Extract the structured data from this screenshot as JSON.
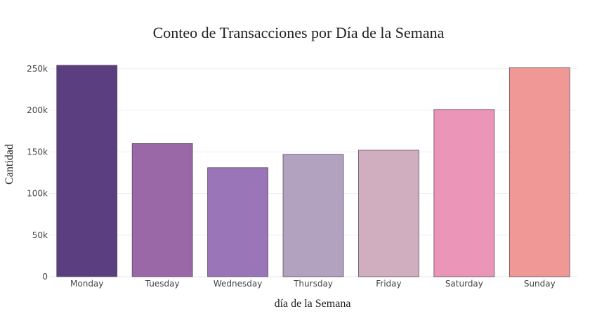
{
  "chart_data": {
    "type": "bar",
    "title": "Conteo de Transacciones por Día de la Semana",
    "xlabel": "día de la Semana",
    "ylabel": "Cantidad",
    "categories": [
      "Monday",
      "Tuesday",
      "Wednesday",
      "Thursday",
      "Friday",
      "Saturday",
      "Sunday"
    ],
    "values": [
      254000,
      160000,
      131000,
      147000,
      152000,
      201000,
      251000
    ],
    "colors": [
      "#5b3e80",
      "#9a68a6",
      "#9a76b8",
      "#b3a2bf",
      "#d1adc0",
      "#eb95b8",
      "#f09896"
    ],
    "ylim": [
      0,
      265000
    ],
    "yticks": [
      0,
      50000,
      100000,
      150000,
      200000,
      250000
    ],
    "ytick_labels": [
      "0",
      "50k",
      "100k",
      "150k",
      "200k",
      "250k"
    ],
    "grid": true,
    "legend": "none"
  }
}
